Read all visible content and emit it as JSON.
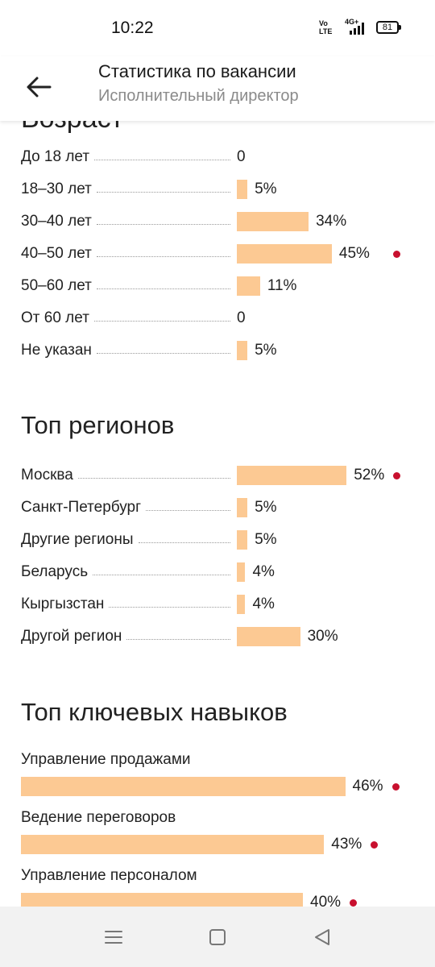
{
  "status_bar": {
    "time": "10:22",
    "volte_line1": "Vo",
    "volte_line2": "LTE",
    "network": "4G+",
    "battery": "81"
  },
  "header": {
    "title": "Статистика по вакансии",
    "subtitle": "Исполнительный директор"
  },
  "age": {
    "rows": [
      {
        "label": "До 18 лет",
        "value": "0",
        "percent": 0,
        "top": false
      },
      {
        "label": "18–30 лет",
        "value": "5%",
        "percent": 5,
        "top": false
      },
      {
        "label": "30–40 лет",
        "value": "34%",
        "percent": 34,
        "top": false
      },
      {
        "label": "40–50 лет",
        "value": "45%",
        "percent": 45,
        "top": true
      },
      {
        "label": "50–60 лет",
        "value": "11%",
        "percent": 11,
        "top": false
      },
      {
        "label": "От 60 лет",
        "value": "0",
        "percent": 0,
        "top": false
      },
      {
        "label": "Не указан",
        "value": "5%",
        "percent": 5,
        "top": false
      }
    ]
  },
  "regions": {
    "title": "Топ регионов",
    "rows": [
      {
        "label": "Москва",
        "value": "52%",
        "percent": 52,
        "top": true
      },
      {
        "label": "Санкт-Петербург",
        "value": "5%",
        "percent": 5,
        "top": false
      },
      {
        "label": "Другие регионы",
        "value": "5%",
        "percent": 5,
        "top": false
      },
      {
        "label": "Беларусь",
        "value": "4%",
        "percent": 4,
        "top": false
      },
      {
        "label": "Кыргызстан",
        "value": "4%",
        "percent": 4,
        "top": false
      },
      {
        "label": "Другой регион",
        "value": "30%",
        "percent": 30,
        "top": false
      }
    ]
  },
  "skills": {
    "title": "Топ ключевых навыков",
    "rows": [
      {
        "label": "Управление продажами",
        "value": "46%",
        "percent": 46,
        "top": true
      },
      {
        "label": "Ведение переговоров",
        "value": "43%",
        "percent": 43,
        "top": true
      },
      {
        "label": "Управление персоналом",
        "value": "40%",
        "percent": 40,
        "top": true
      }
    ]
  },
  "colors": {
    "bar": "#fcc993",
    "accent_dot": "#c8102e",
    "text": "#222222",
    "subtitle": "#8a8a8a"
  },
  "icons": {
    "back": "arrow-left-icon",
    "menu": "menu-icon",
    "home": "square-icon",
    "back_nav": "triangle-back-icon"
  }
}
